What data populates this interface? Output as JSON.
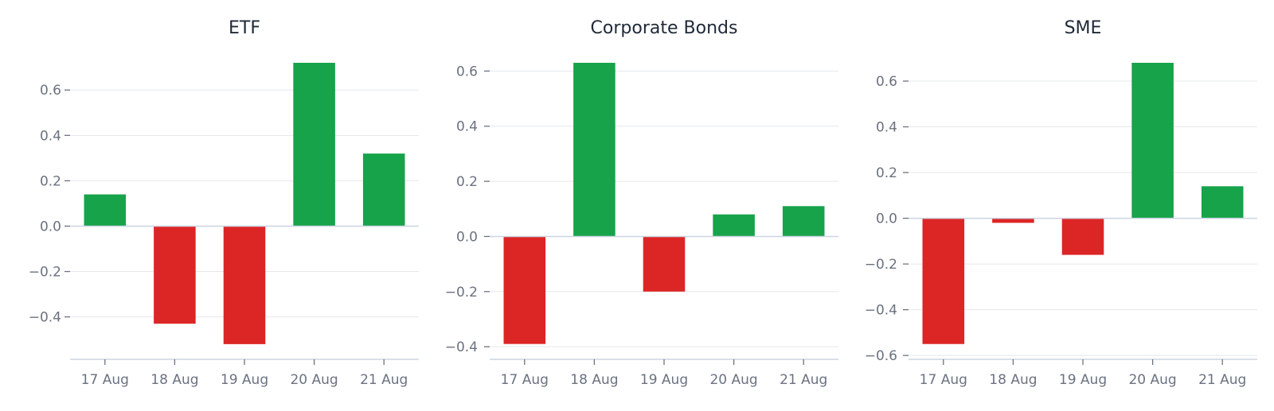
{
  "colors": {
    "positive": "#16a34a",
    "negative": "#dc2626",
    "grid": "#e5e7eb",
    "axis": "#cbd5e1",
    "tick_text": "#6b7280",
    "title_text": "#1f2937"
  },
  "chart_data": [
    {
      "type": "bar",
      "title": "ETF",
      "categories": [
        "17 Aug",
        "18 Aug",
        "19 Aug",
        "20 Aug",
        "21 Aug"
      ],
      "values": [
        0.14,
        -0.43,
        -0.52,
        0.72,
        0.32
      ],
      "ylim": [
        -0.58,
        0.72
      ],
      "yticks": [
        -0.4,
        -0.2,
        0.0,
        0.2,
        0.4,
        0.6
      ],
      "ytick_labels": [
        "−0.4",
        "−0.2",
        "0.0",
        "0.2",
        "0.4",
        "0.6"
      ],
      "grid": true
    },
    {
      "type": "bar",
      "title": "Corporate Bonds",
      "categories": [
        "17 Aug",
        "18 Aug",
        "19 Aug",
        "20 Aug",
        "21 Aug"
      ],
      "values": [
        -0.39,
        0.63,
        -0.2,
        0.08,
        0.11
      ],
      "ylim": [
        -0.44,
        0.63
      ],
      "yticks": [
        -0.4,
        -0.2,
        0.0,
        0.2,
        0.4,
        0.6
      ],
      "ytick_labels": [
        "−0.4",
        "−0.2",
        "0.0",
        "0.2",
        "0.4",
        "0.6"
      ],
      "grid": true
    },
    {
      "type": "bar",
      "title": "SME",
      "categories": [
        "17 Aug",
        "18 Aug",
        "19 Aug",
        "20 Aug",
        "21 Aug"
      ],
      "values": [
        -0.55,
        -0.02,
        -0.16,
        0.68,
        0.14
      ],
      "ylim": [
        -0.61,
        0.68
      ],
      "yticks": [
        -0.6,
        -0.4,
        -0.2,
        0.0,
        0.2,
        0.4,
        0.6
      ],
      "ytick_labels": [
        "−0.6",
        "−0.4",
        "−0.2",
        "0.0",
        "0.2",
        "0.4",
        "0.6"
      ],
      "grid": true
    }
  ]
}
